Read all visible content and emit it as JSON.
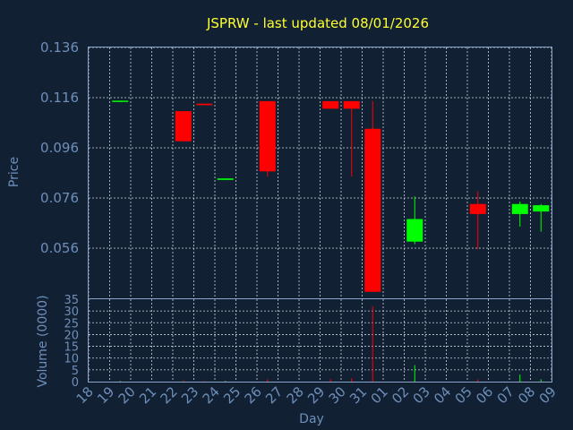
{
  "chart_data": {
    "type": "candlestick",
    "title": "JSPRW - last updated 08/01/2026",
    "xlabel": "Day",
    "ylabel": "Price",
    "volume_label": "Volume (0000)",
    "x_ticks": [
      "18",
      "19",
      "20",
      "21",
      "22",
      "23",
      "24",
      "25",
      "26",
      "27",
      "28",
      "29",
      "30",
      "31",
      "01",
      "02",
      "03",
      "04",
      "05",
      "06",
      "07",
      "08",
      "09"
    ],
    "price_ticks": [
      "0.056",
      "0.076",
      "0.096",
      "0.116",
      "0.136"
    ],
    "price_range": [
      0.036,
      0.136
    ],
    "volume_ticks": [
      "0",
      "5",
      "10",
      "15",
      "20",
      "25",
      "30",
      "35"
    ],
    "volume_range": [
      0,
      35
    ],
    "grid": true,
    "colors": {
      "up": "#00ff00",
      "down": "#ff0000",
      "background": "#112033",
      "title": "#ffff33",
      "axis": "#6e8fb8"
    },
    "candles": [
      {
        "day": "19",
        "open": 0.1145,
        "high": 0.1148,
        "low": 0.1142,
        "close": 0.1148,
        "volume": 0.3
      },
      {
        "day": "22",
        "open": 0.1106,
        "high": 0.1106,
        "low": 0.0986,
        "close": 0.0986,
        "volume": 0.5
      },
      {
        "day": "23",
        "open": 0.1136,
        "high": 0.1136,
        "low": 0.113,
        "close": 0.113,
        "volume": 0.3
      },
      {
        "day": "24",
        "open": 0.0832,
        "high": 0.0838,
        "low": 0.0832,
        "close": 0.0838,
        "volume": 0.3
      },
      {
        "day": "26",
        "open": 0.1146,
        "high": 0.1146,
        "low": 0.0846,
        "close": 0.0866,
        "volume": 1.0
      },
      {
        "day": "29",
        "open": 0.1146,
        "high": 0.1146,
        "low": 0.1116,
        "close": 0.1116,
        "volume": 1.0
      },
      {
        "day": "30",
        "open": 0.1146,
        "high": 0.1146,
        "low": 0.0846,
        "close": 0.1116,
        "volume": 1.5
      },
      {
        "day": "31",
        "open": 0.1036,
        "high": 0.1146,
        "low": 0.0386,
        "close": 0.0386,
        "volume": 32.0
      },
      {
        "day": "02",
        "open": 0.0586,
        "high": 0.0766,
        "low": 0.0576,
        "close": 0.0676,
        "volume": 7.0
      },
      {
        "day": "05",
        "open": 0.0736,
        "high": 0.0786,
        "low": 0.0556,
        "close": 0.0696,
        "volume": 1.0
      },
      {
        "day": "07",
        "open": 0.0696,
        "high": 0.0746,
        "low": 0.0646,
        "close": 0.0736,
        "volume": 3.0
      },
      {
        "day": "08",
        "open": 0.0706,
        "high": 0.0736,
        "low": 0.0626,
        "close": 0.0731,
        "volume": 1.0
      }
    ]
  }
}
